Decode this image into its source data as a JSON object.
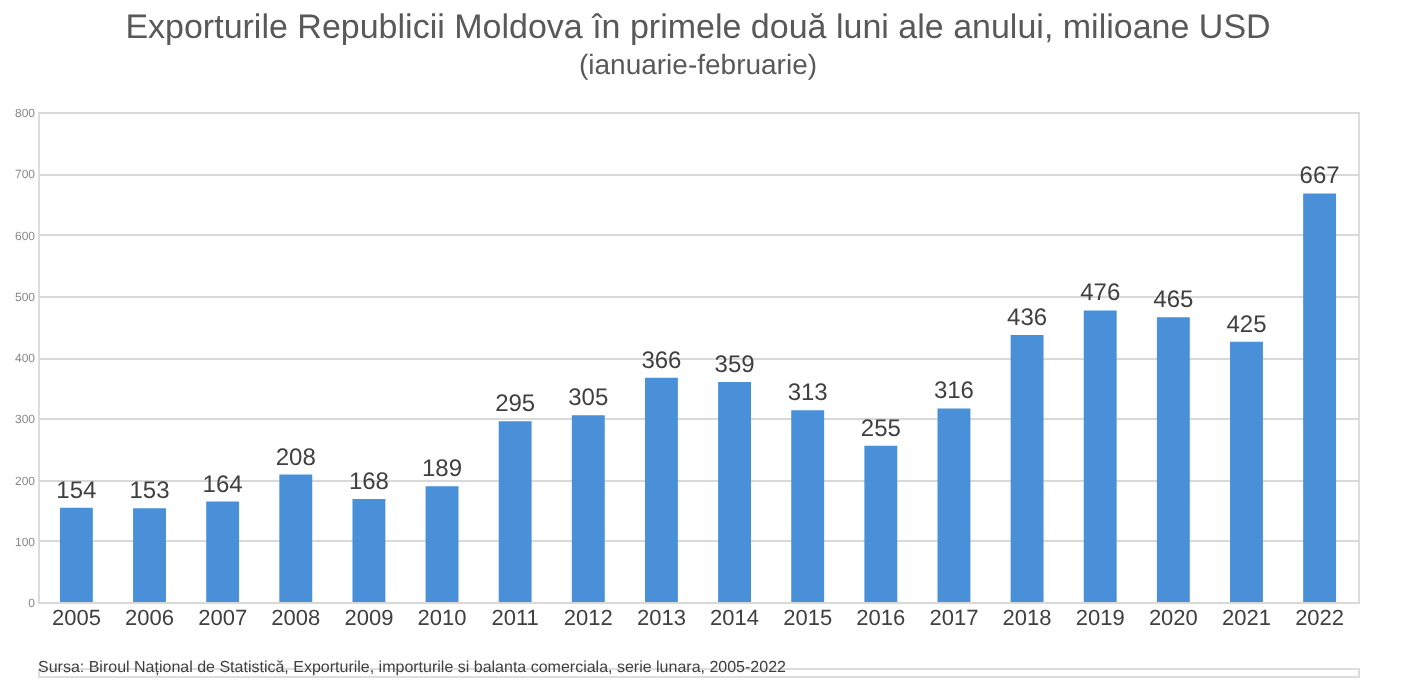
{
  "chart_data": {
    "type": "bar",
    "title": "Exporturile Republicii Moldova în primele două luni ale anului, milioane USD",
    "subtitle": "(ianuarie-februarie)",
    "categories": [
      "2005",
      "2006",
      "2007",
      "2008",
      "2009",
      "2010",
      "2011",
      "2012",
      "2013",
      "2014",
      "2015",
      "2016",
      "2017",
      "2018",
      "2019",
      "2020",
      "2021",
      "2022"
    ],
    "values": [
      154,
      153,
      164,
      208,
      168,
      189,
      295,
      305,
      366,
      359,
      313,
      255,
      316,
      436,
      476,
      465,
      425,
      667
    ],
    "color": "#4a90d9",
    "ylim": [
      0,
      800
    ],
    "yticks": [
      0,
      100,
      200,
      300,
      400,
      500,
      600,
      700,
      800
    ],
    "grid": "y",
    "data_labels": true,
    "annotations": [
      "Sursa: Biroul Național de Statistică, Exporturile, importurile si balanta comerciala, serie lunara, 2005-2022"
    ]
  }
}
